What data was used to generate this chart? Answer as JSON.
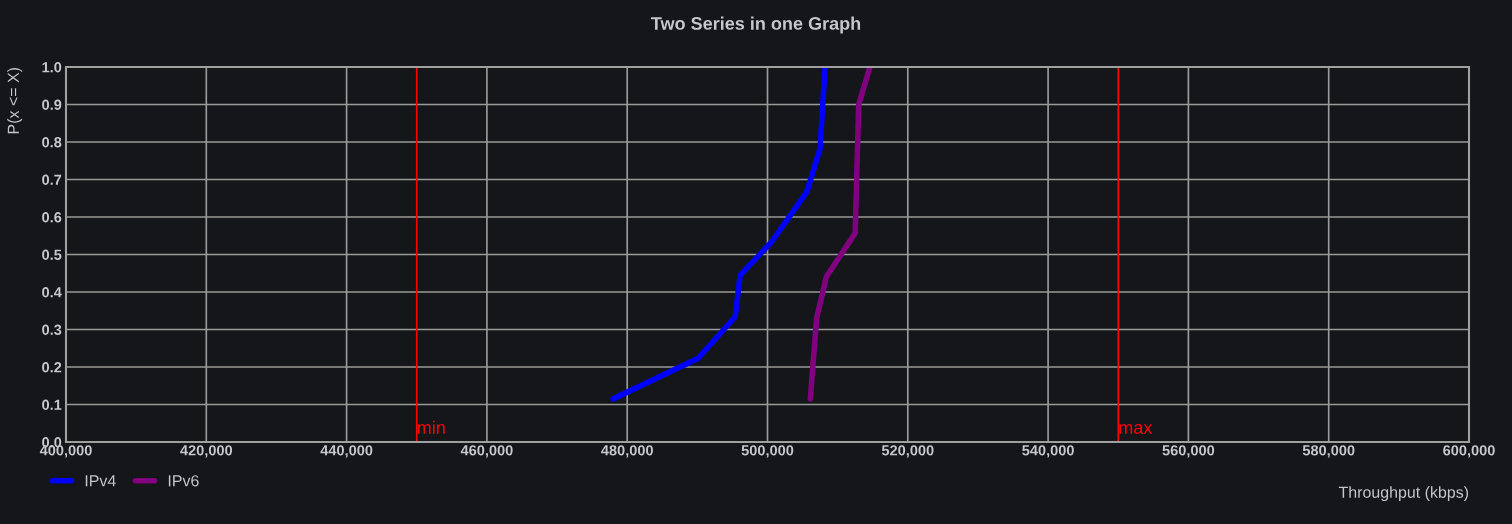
{
  "chart_data": {
    "type": "line",
    "title": "Two Series in one Graph",
    "xlabel": "Throughput (kbps)",
    "ylabel": "P(x <= X)",
    "xlim": [
      400000,
      600000
    ],
    "xticks": [
      {
        "value": 400000,
        "label": "400,000"
      },
      {
        "value": 420000,
        "label": "420,000"
      },
      {
        "value": 440000,
        "label": "440,000"
      },
      {
        "value": 460000,
        "label": "460,000"
      },
      {
        "value": 480000,
        "label": "480,000"
      },
      {
        "value": 500000,
        "label": "500,000"
      },
      {
        "value": 520000,
        "label": "520,000"
      },
      {
        "value": 540000,
        "label": "540,000"
      },
      {
        "value": 560000,
        "label": "560,000"
      },
      {
        "value": 580000,
        "label": "580,000"
      },
      {
        "value": 600000,
        "label": "600,000"
      }
    ],
    "ylim": [
      0,
      1
    ],
    "yticks": [
      {
        "value": 0,
        "label": "0.0"
      },
      {
        "value": 0.1,
        "label": "0.1"
      },
      {
        "value": 0.2,
        "label": "0.2"
      },
      {
        "value": 0.3,
        "label": "0.3"
      },
      {
        "value": 0.4,
        "label": "0.4"
      },
      {
        "value": 0.5,
        "label": "0.5"
      },
      {
        "value": 0.6,
        "label": "0.6"
      },
      {
        "value": 0.7,
        "label": "0.7"
      },
      {
        "value": 0.8,
        "label": "0.8"
      },
      {
        "value": 0.9,
        "label": "0.9"
      },
      {
        "value": 1,
        "label": "1.0"
      }
    ],
    "series": [
      {
        "name": "IPv4",
        "color": "#0000ff",
        "x": [
          478000,
          490100,
          495400,
          496100,
          500600,
          505600,
          507500,
          508200
        ],
        "values": [
          0.115,
          0.223,
          0.334,
          0.445,
          0.534,
          0.667,
          0.783,
          1.0
        ]
      },
      {
        "name": "IPv6",
        "color": "#800080",
        "x": [
          506100,
          507000,
          508400,
          512500,
          513000,
          514600
        ],
        "values": [
          0.115,
          0.33,
          0.441,
          0.557,
          0.899,
          1.0
        ]
      }
    ],
    "ref_lines": [
      {
        "axis": "x",
        "value": 450000,
        "label": "min",
        "color": "#ff0000"
      },
      {
        "axis": "x",
        "value": 550000,
        "label": "max",
        "color": "#ff0000"
      }
    ],
    "grid": true,
    "legend": "bottom left",
    "marker": "none",
    "line_style": "solid"
  }
}
